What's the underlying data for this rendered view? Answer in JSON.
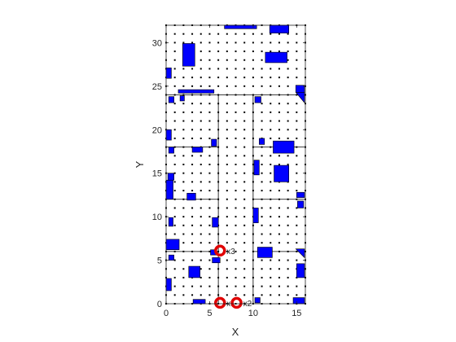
{
  "chart_data": {
    "type": "scatter",
    "title": "",
    "xlabel": "X",
    "ylabel": "Y",
    "xlim": [
      0,
      16
    ],
    "ylim": [
      0,
      32
    ],
    "xticks": [
      0,
      5,
      10,
      15
    ],
    "yticks": [
      0,
      5,
      10,
      15,
      20,
      25,
      30
    ],
    "x_tick_labels": [
      "0",
      "5",
      "10",
      "15"
    ],
    "y_tick_labels": [
      "0",
      "5",
      "10",
      "15",
      "20",
      "25",
      "30"
    ],
    "grid": false,
    "dot_grid": {
      "x_step": 1,
      "y_step": 1,
      "x_range": [
        0,
        16
      ],
      "y_range": [
        0,
        32
      ],
      "color": "#000000"
    },
    "partition_lines": {
      "vertical": [
        {
          "x": 6,
          "y0": 0,
          "y1": 24
        },
        {
          "x": 10,
          "y0": 0,
          "y1": 24
        }
      ],
      "horizontal": [
        {
          "y": 24,
          "x0": 0,
          "x1": 16
        },
        {
          "y": 18,
          "x0": 0,
          "x1": 6
        },
        {
          "y": 18,
          "x0": 10,
          "x1": 16
        },
        {
          "y": 12,
          "x0": 0,
          "x1": 6
        },
        {
          "y": 12,
          "x0": 10,
          "x1": 16
        },
        {
          "y": 6,
          "x0": 0,
          "x1": 6
        },
        {
          "y": 6,
          "x0": 10,
          "x1": 16
        }
      ]
    },
    "obstacles_color": "#0000ff",
    "obstacles": [
      [
        6.7,
        31.6,
        10.4,
        32.0
      ],
      [
        11.9,
        31.1,
        14.1,
        32.0
      ],
      [
        1.9,
        27.3,
        3.3,
        29.9
      ],
      [
        11.4,
        27.7,
        13.9,
        28.9
      ],
      [
        0.0,
        25.9,
        0.6,
        27.1
      ],
      [
        1.4,
        24.2,
        5.5,
        24.6
      ],
      [
        14.9,
        24.3,
        15.9,
        25.1
      ],
      [
        0.3,
        23.1,
        0.9,
        23.8
      ],
      [
        1.6,
        23.3,
        2.1,
        23.9
      ],
      [
        10.2,
        23.1,
        10.9,
        23.8
      ],
      [
        0.0,
        18.8,
        0.6,
        20.0
      ],
      [
        5.2,
        18.1,
        5.8,
        18.9
      ],
      [
        10.7,
        18.3,
        11.3,
        19.0
      ],
      [
        12.3,
        17.3,
        14.7,
        18.7
      ],
      [
        0.3,
        17.3,
        0.9,
        18.0
      ],
      [
        3.0,
        17.4,
        4.2,
        18.0
      ],
      [
        10.1,
        14.8,
        10.7,
        16.5
      ],
      [
        12.4,
        14.0,
        14.1,
        15.9
      ],
      [
        0.2,
        14.2,
        0.9,
        15.0
      ],
      [
        0.0,
        12.0,
        0.8,
        14.2
      ],
      [
        15.0,
        12.2,
        15.9,
        12.8
      ],
      [
        2.4,
        11.9,
        3.4,
        12.7
      ],
      [
        15.1,
        11.0,
        15.8,
        11.8
      ],
      [
        10.0,
        9.3,
        10.6,
        11.0
      ],
      [
        0.3,
        8.9,
        0.8,
        9.9
      ],
      [
        5.3,
        8.8,
        6.0,
        9.9
      ],
      [
        0.0,
        6.2,
        1.5,
        7.4
      ],
      [
        10.5,
        5.3,
        12.2,
        6.5
      ],
      [
        5.1,
        5.6,
        5.8,
        6.2
      ],
      [
        5.3,
        4.7,
        6.2,
        5.3
      ],
      [
        0.3,
        5.0,
        0.9,
        5.6
      ],
      [
        2.6,
        3.0,
        3.9,
        4.3
      ],
      [
        15.0,
        3.0,
        15.9,
        4.6
      ],
      [
        0.0,
        1.5,
        0.6,
        2.9
      ],
      [
        3.1,
        0.0,
        4.5,
        0.5
      ],
      [
        14.6,
        0.0,
        15.9,
        0.7
      ],
      [
        10.2,
        0.1,
        10.8,
        0.7
      ]
    ],
    "triangles": [
      [
        [
          14.9,
          24.3
        ],
        [
          15.9,
          24.3
        ],
        [
          15.9,
          23.1
        ]
      ],
      [
        [
          14.9,
          6.3
        ],
        [
          15.9,
          6.3
        ],
        [
          15.9,
          5.3
        ]
      ]
    ],
    "robots": {
      "color": "#e00000",
      "points": [
        {
          "x": 6.2,
          "y": 6.1,
          "label": "x3"
        },
        {
          "x": 6.2,
          "y": 0.1,
          "label": "x1"
        },
        {
          "x": 8.1,
          "y": 0.1,
          "label": "x2"
        }
      ]
    }
  }
}
